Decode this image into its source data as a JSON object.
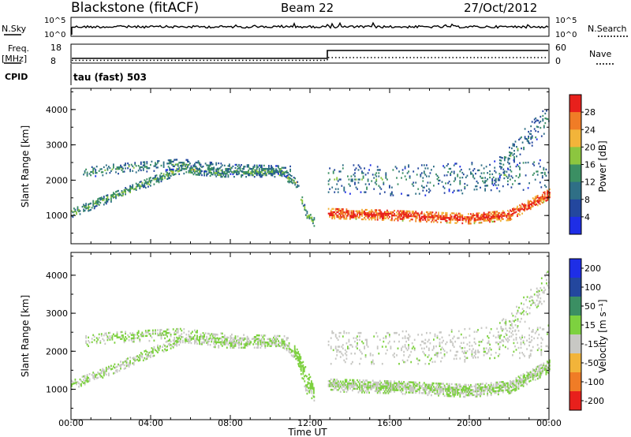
{
  "header": {
    "station": "Blackstone (fitACF)",
    "beam": "Beam 22",
    "date": "27/Oct/2012"
  },
  "status_panels": {
    "nsky": {
      "label": "N.Sky",
      "ticks": [
        "10^5",
        "10^0"
      ]
    },
    "nsearch": {
      "label": "N.Search",
      "ticks": [
        "10^5",
        "10^0"
      ]
    },
    "freq": {
      "label_1": "Freq.",
      "label_2": "[MHz]",
      "ticks": [
        "18",
        "8"
      ]
    },
    "nave": {
      "label": "Nave",
      "ticks": [
        "60",
        "0"
      ]
    },
    "cpid": {
      "label": "CPID",
      "text": "tau (fast) 503"
    }
  },
  "colors": {
    "power": [
      "#1e2ee6",
      "#23479e",
      "#2f6f86",
      "#3b8f63",
      "#8cc63f",
      "#f2b43a",
      "#f07c26",
      "#e8201c"
    ],
    "velocity": [
      "#1e2ee6",
      "#23479e",
      "#3b8f63",
      "#7dd13f",
      "#c8c8c4",
      "#f2b43a",
      "#f07c26",
      "#e8201c"
    ]
  },
  "chart_data": [
    {
      "type": "heatmap",
      "name": "power",
      "ylabel": "Slant Range [km]",
      "yticks": [
        "1000",
        "2000",
        "3000",
        "4000"
      ],
      "ylim": [
        200,
        4600
      ],
      "xticks": [
        "00:00",
        "04:00",
        "08:00",
        "12:00",
        "16:00",
        "20:00",
        "00:00"
      ],
      "colorbar": {
        "label": "Power [dB]",
        "ticks": [
          "4",
          "8",
          "12",
          "16",
          "20",
          "24",
          "28"
        ],
        "range": [
          0,
          32
        ]
      },
      "bands": [
        {
          "t0": 0.0,
          "t1": 12.2,
          "ranges": [
            [
              0.0,
              1050
            ],
            [
              2.0,
              1500
            ],
            [
              5.5,
              2300
            ],
            [
              7.5,
              2200
            ],
            [
              10.5,
              2200
            ],
            [
              11.3,
              1900
            ],
            [
              11.8,
              1000
            ],
            [
              12.2,
              800
            ]
          ],
          "width": 250,
          "value": 10,
          "density": 0.7
        },
        {
          "t0": 0.6,
          "t1": 11.0,
          "ranges": [
            [
              0.6,
              2200
            ],
            [
              2.0,
              2300
            ],
            [
              5.5,
              2450
            ],
            [
              8.0,
              2300
            ],
            [
              11.0,
              2250
            ]
          ],
          "width": 300,
          "value": 7,
          "density": 0.45
        },
        {
          "t0": 12.9,
          "t1": 24.0,
          "ranges": [
            [
              12.9,
              1050
            ],
            [
              16.0,
              1000
            ],
            [
              20.0,
              900
            ],
            [
              22.0,
              1000
            ],
            [
              24.0,
              1600
            ]
          ],
          "width": 300,
          "value": 24,
          "density": 0.9
        },
        {
          "t0": 12.9,
          "t1": 24.0,
          "ranges": [
            [
              12.9,
              2000
            ],
            [
              18.0,
              2000
            ],
            [
              24.0,
              2200
            ]
          ],
          "width": 900,
          "value": 6,
          "density": 0.15
        },
        {
          "t0": 21.5,
          "t1": 24.0,
          "ranges": [
            [
              21.5,
              2400
            ],
            [
              24.0,
              3800
            ]
          ],
          "width": 700,
          "value": 6,
          "density": 0.25
        }
      ]
    },
    {
      "type": "heatmap",
      "name": "velocity",
      "ylabel": "Slant Range [km]",
      "xlabel": "Time UT",
      "yticks": [
        "1000",
        "2000",
        "3000",
        "4000"
      ],
      "ylim": [
        200,
        4600
      ],
      "xticks": [
        "00:00",
        "04:00",
        "08:00",
        "12:00",
        "16:00",
        "20:00",
        "00:00"
      ],
      "colorbar": {
        "label": "Velocity [m s⁻¹]",
        "ticks": [
          "200",
          "100",
          "50",
          "15",
          "-15",
          "-50",
          "-100",
          "-200"
        ],
        "range": [
          -250,
          250
        ]
      },
      "bands": [
        {
          "t0": 0.0,
          "t1": 12.2,
          "ranges": [
            [
              0.0,
              1100
            ],
            [
              2.0,
              1500
            ],
            [
              5.5,
              2300
            ],
            [
              7.5,
              2200
            ],
            [
              10.5,
              2200
            ],
            [
              11.3,
              1900
            ],
            [
              11.8,
              1000
            ],
            [
              12.2,
              800
            ]
          ],
          "width": 250,
          "value": 0,
          "density": 0.6
        },
        {
          "t0": 0.6,
          "t1": 11.0,
          "ranges": [
            [
              0.6,
              2250
            ],
            [
              2.0,
              2350
            ],
            [
              5.5,
              2450
            ],
            [
              8.0,
              2300
            ],
            [
              11.0,
              2250
            ]
          ],
          "width": 300,
          "value": 0,
          "density": 0.45
        },
        {
          "t0": 11.2,
          "t1": 12.2,
          "ranges": [
            [
              11.2,
              2000
            ],
            [
              12.2,
              900
            ]
          ],
          "width": 400,
          "value": 30,
          "density": 0.7
        },
        {
          "t0": 12.9,
          "t1": 24.0,
          "ranges": [
            [
              12.9,
              1100
            ],
            [
              16.0,
              1050
            ],
            [
              20.0,
              950
            ],
            [
              22.0,
              1050
            ],
            [
              24.0,
              1600
            ]
          ],
          "width": 350,
          "value": 0,
          "density": 0.9
        },
        {
          "t0": 12.9,
          "t1": 24.0,
          "ranges": [
            [
              12.9,
              2100
            ],
            [
              18.0,
              2100
            ],
            [
              24.0,
              2300
            ]
          ],
          "width": 900,
          "value": -20,
          "density": 0.18
        },
        {
          "t0": 21.5,
          "t1": 24.0,
          "ranges": [
            [
              21.5,
              2400
            ],
            [
              24.0,
              3800
            ]
          ],
          "width": 700,
          "value": -10,
          "density": 0.25
        }
      ]
    }
  ]
}
